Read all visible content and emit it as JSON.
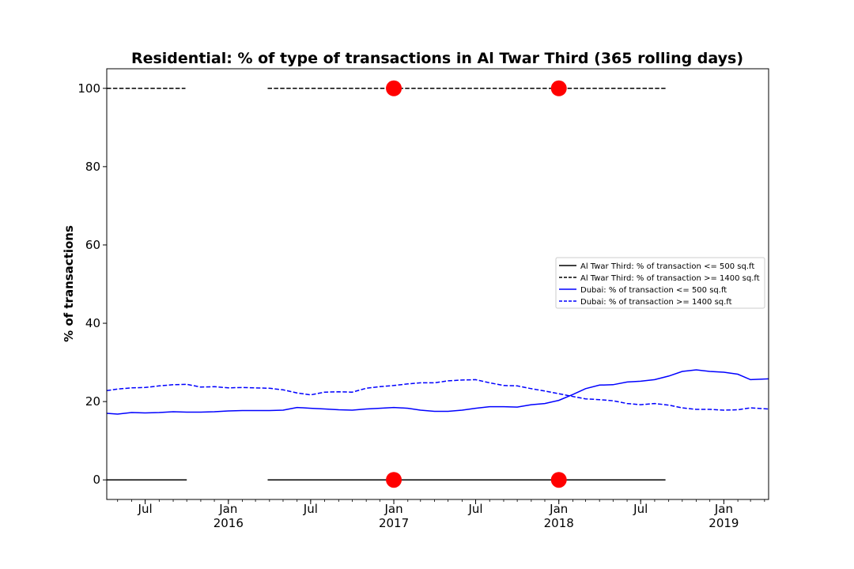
{
  "chart_data": {
    "type": "line",
    "title": "Residential: % of type of transactions in Al Twar Third (365 rolling days)",
    "xlabel": "",
    "ylabel": "% of transactions",
    "xlim": [
      "2015-04-07",
      "2019-04-10"
    ],
    "ylim": [
      -5,
      105
    ],
    "grid": false,
    "legend_position": "center-right",
    "y_ticks": [
      0,
      20,
      40,
      60,
      80,
      100
    ],
    "x_ticks": [
      {
        "date": "2015-07-01",
        "label": "Jul",
        "year": ""
      },
      {
        "date": "2016-01-01",
        "label": "Jan",
        "year": "2016"
      },
      {
        "date": "2016-07-01",
        "label": "Jul",
        "year": ""
      },
      {
        "date": "2017-01-01",
        "label": "Jan",
        "year": "2017"
      },
      {
        "date": "2017-07-01",
        "label": "Jul",
        "year": ""
      },
      {
        "date": "2018-01-01",
        "label": "Jan",
        "year": "2018"
      },
      {
        "date": "2018-07-01",
        "label": "Jul",
        "year": ""
      },
      {
        "date": "2019-01-01",
        "label": "Jan",
        "year": "2019"
      }
    ],
    "series": [
      {
        "name": "Al Twar Third: % of transaction <= 500 sq.ft",
        "color": "#000000",
        "style": "solid",
        "segments": [
          [
            [
              "2015-04-07",
              0
            ],
            [
              "2015-10-01",
              0
            ]
          ],
          [
            [
              "2016-03-28",
              0
            ],
            [
              "2018-08-25",
              0
            ]
          ]
        ]
      },
      {
        "name": "Al Twar Third: % of transaction >= 1400 sq.ft",
        "color": "#000000",
        "style": "dashed",
        "segments": [
          [
            [
              "2015-04-07",
              100
            ],
            [
              "2015-09-28",
              100
            ]
          ],
          [
            [
              "2016-03-28",
              100
            ],
            [
              "2018-08-25",
              100
            ]
          ]
        ]
      },
      {
        "name": "Dubai: % of transaction <= 500 sq.ft",
        "color": "#0000ff",
        "style": "solid",
        "points": [
          [
            "2015-04-07",
            17.0
          ],
          [
            "2015-05-01",
            16.8
          ],
          [
            "2015-06-01",
            17.2
          ],
          [
            "2015-07-01",
            17.1
          ],
          [
            "2015-08-01",
            17.2
          ],
          [
            "2015-09-01",
            17.4
          ],
          [
            "2015-10-01",
            17.3
          ],
          [
            "2015-11-01",
            17.3
          ],
          [
            "2015-12-01",
            17.4
          ],
          [
            "2016-01-01",
            17.6
          ],
          [
            "2016-02-01",
            17.7
          ],
          [
            "2016-03-01",
            17.7
          ],
          [
            "2016-04-01",
            17.7
          ],
          [
            "2016-05-01",
            17.8
          ],
          [
            "2016-06-01",
            18.5
          ],
          [
            "2016-07-01",
            18.3
          ],
          [
            "2016-08-01",
            18.1
          ],
          [
            "2016-09-01",
            17.9
          ],
          [
            "2016-10-01",
            17.8
          ],
          [
            "2016-11-01",
            18.1
          ],
          [
            "2016-12-01",
            18.3
          ],
          [
            "2017-01-01",
            18.5
          ],
          [
            "2017-02-01",
            18.3
          ],
          [
            "2017-03-01",
            17.8
          ],
          [
            "2017-04-01",
            17.5
          ],
          [
            "2017-05-01",
            17.5
          ],
          [
            "2017-06-01",
            17.8
          ],
          [
            "2017-07-01",
            18.3
          ],
          [
            "2017-08-01",
            18.7
          ],
          [
            "2017-09-01",
            18.7
          ],
          [
            "2017-10-01",
            18.6
          ],
          [
            "2017-11-01",
            19.2
          ],
          [
            "2017-12-01",
            19.5
          ],
          [
            "2018-01-01",
            20.3
          ],
          [
            "2018-02-01",
            21.8
          ],
          [
            "2018-03-01",
            23.3
          ],
          [
            "2018-04-01",
            24.2
          ],
          [
            "2018-05-01",
            24.3
          ],
          [
            "2018-06-01",
            25.0
          ],
          [
            "2018-07-01",
            25.2
          ],
          [
            "2018-08-01",
            25.6
          ],
          [
            "2018-09-01",
            26.5
          ],
          [
            "2018-10-01",
            27.7
          ],
          [
            "2018-11-01",
            28.1
          ],
          [
            "2018-12-01",
            27.7
          ],
          [
            "2019-01-01",
            27.5
          ],
          [
            "2019-02-01",
            27.0
          ],
          [
            "2019-03-01",
            25.6
          ],
          [
            "2019-04-10",
            25.8
          ]
        ]
      },
      {
        "name": "Dubai: % of transaction >= 1400 sq.ft",
        "color": "#0000ff",
        "style": "dashed",
        "points": [
          [
            "2015-04-07",
            22.8
          ],
          [
            "2015-05-01",
            23.2
          ],
          [
            "2015-06-01",
            23.5
          ],
          [
            "2015-07-01",
            23.6
          ],
          [
            "2015-08-01",
            24.0
          ],
          [
            "2015-09-01",
            24.3
          ],
          [
            "2015-10-01",
            24.4
          ],
          [
            "2015-11-01",
            23.7
          ],
          [
            "2015-12-01",
            23.8
          ],
          [
            "2016-01-01",
            23.5
          ],
          [
            "2016-02-01",
            23.6
          ],
          [
            "2016-03-01",
            23.5
          ],
          [
            "2016-04-01",
            23.4
          ],
          [
            "2016-05-01",
            23.0
          ],
          [
            "2016-06-01",
            22.2
          ],
          [
            "2016-07-01",
            21.7
          ],
          [
            "2016-08-01",
            22.4
          ],
          [
            "2016-09-01",
            22.5
          ],
          [
            "2016-10-01",
            22.4
          ],
          [
            "2016-11-01",
            23.4
          ],
          [
            "2016-12-01",
            23.8
          ],
          [
            "2017-01-01",
            24.1
          ],
          [
            "2017-02-01",
            24.5
          ],
          [
            "2017-03-01",
            24.8
          ],
          [
            "2017-04-01",
            24.8
          ],
          [
            "2017-05-01",
            25.3
          ],
          [
            "2017-06-01",
            25.5
          ],
          [
            "2017-07-01",
            25.6
          ],
          [
            "2017-08-01",
            24.8
          ],
          [
            "2017-09-01",
            24.1
          ],
          [
            "2017-10-01",
            24.0
          ],
          [
            "2017-11-01",
            23.3
          ],
          [
            "2017-12-01",
            22.7
          ],
          [
            "2018-01-01",
            22.0
          ],
          [
            "2018-02-01",
            21.3
          ],
          [
            "2018-03-01",
            20.7
          ],
          [
            "2018-04-01",
            20.5
          ],
          [
            "2018-05-01",
            20.2
          ],
          [
            "2018-06-01",
            19.5
          ],
          [
            "2018-07-01",
            19.2
          ],
          [
            "2018-08-01",
            19.5
          ],
          [
            "2018-09-01",
            19.1
          ],
          [
            "2018-10-01",
            18.4
          ],
          [
            "2018-11-01",
            18.0
          ],
          [
            "2018-12-01",
            18.0
          ],
          [
            "2019-01-01",
            17.8
          ],
          [
            "2019-02-01",
            17.9
          ],
          [
            "2019-03-01",
            18.4
          ],
          [
            "2019-04-10",
            18.1
          ]
        ]
      }
    ],
    "markers": [
      {
        "date": "2017-01-01",
        "value": 100,
        "color": "#ff0000"
      },
      {
        "date": "2018-01-01",
        "value": 100,
        "color": "#ff0000"
      },
      {
        "date": "2017-01-01",
        "value": 0,
        "color": "#ff0000"
      },
      {
        "date": "2018-01-01",
        "value": 0,
        "color": "#ff0000"
      }
    ]
  }
}
